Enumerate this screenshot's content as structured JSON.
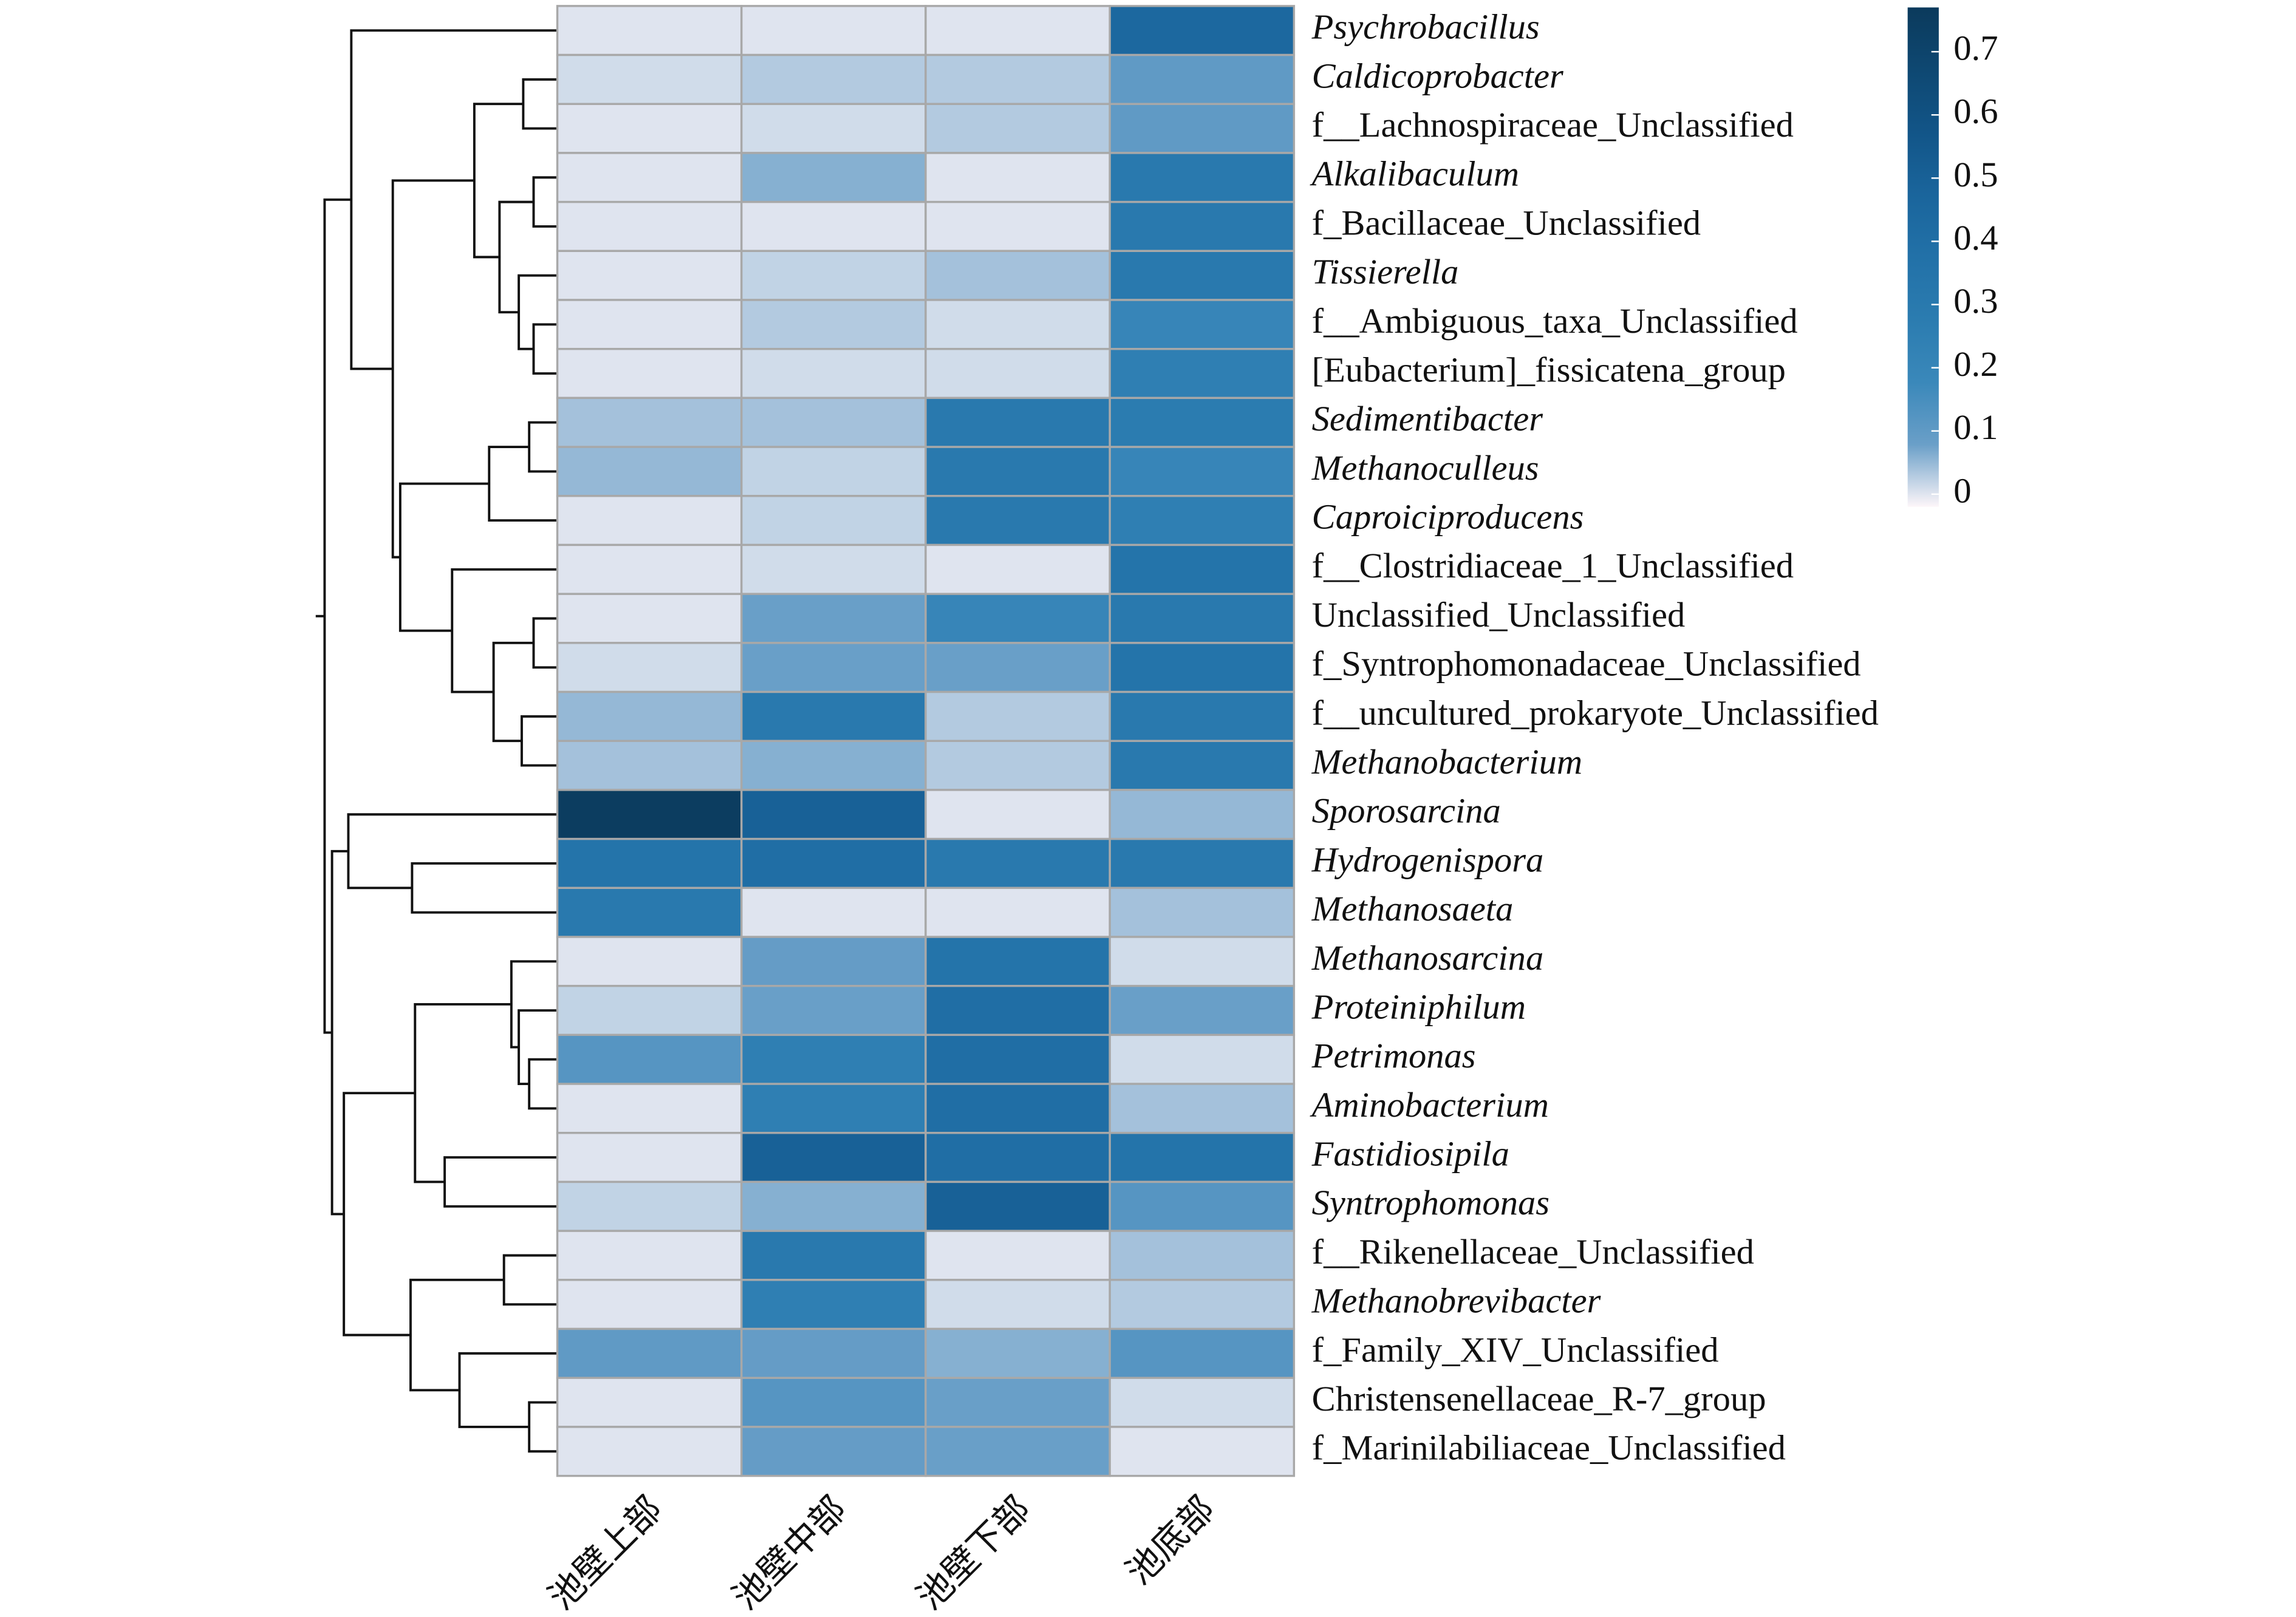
{
  "chart_data": {
    "type": "heatmap",
    "categories": [
      "池壁上部",
      "池壁中部",
      "池壁下部",
      "池底部"
    ],
    "rows": [
      "Psychrobacillus",
      "Caldicoprobacter",
      "f__Lachnospiraceae_Unclassified",
      "Alkalibaculum",
      "f_Bacillaceae_Unclassified",
      "Tissierella",
      "f__Ambiguous_taxa_Unclassified",
      "[Eubacterium]_fissicatena_group",
      "Sedimentibacter",
      "Methanoculleus",
      "Caproiciproducens",
      "f__Clostridiaceae_1_Unclassified",
      "Unclassified_Unclassified",
      "f_Syntrophomonadaceae_Unclassified",
      "f__uncultured_prokaryote_Unclassified",
      "Methanobacterium",
      "Sporosarcina",
      "Hydrogenispora",
      "Methanosaeta",
      "Methanosarcina",
      "Proteiniphilum",
      "Petrimonas",
      "Aminobacterium",
      "Fastidiosipila",
      "Syntrophomonas",
      "f__Rikenellaceae_Unclassified",
      "Methanobrevibacter",
      "f_Family_XIV_Unclassified",
      "Christensenellaceae_R-7_group",
      "f_Marinilabiliaceae_Unclassified"
    ],
    "row_italic": [
      true,
      true,
      false,
      true,
      false,
      true,
      false,
      false,
      true,
      true,
      true,
      false,
      false,
      false,
      false,
      true,
      true,
      true,
      true,
      true,
      true,
      true,
      true,
      true,
      true,
      false,
      true,
      false,
      false,
      false
    ],
    "values": [
      [
        0,
        0,
        0,
        0.45
      ],
      [
        0.01,
        0.03,
        0.03,
        0.1
      ],
      [
        0,
        0.01,
        0.03,
        0.1
      ],
      [
        0,
        0.06,
        0,
        0.3
      ],
      [
        0,
        0,
        0,
        0.3
      ],
      [
        0,
        0.02,
        0.04,
        0.3
      ],
      [
        0,
        0.03,
        0.01,
        0.2
      ],
      [
        0,
        0.01,
        0.01,
        0.25
      ],
      [
        0.04,
        0.04,
        0.3,
        0.28
      ],
      [
        0.05,
        0.02,
        0.3,
        0.2
      ],
      [
        0,
        0.02,
        0.3,
        0.25
      ],
      [
        0,
        0.01,
        0,
        0.35
      ],
      [
        0,
        0.08,
        0.2,
        0.3
      ],
      [
        0.01,
        0.08,
        0.08,
        0.35
      ],
      [
        0.05,
        0.3,
        0.03,
        0.3
      ],
      [
        0.04,
        0.06,
        0.03,
        0.3
      ],
      [
        0.75,
        0.5,
        0,
        0.05
      ],
      [
        0.35,
        0.4,
        0.3,
        0.3
      ],
      [
        0.3,
        0,
        0,
        0.04
      ],
      [
        0,
        0.09,
        0.35,
        0.01
      ],
      [
        0.02,
        0.08,
        0.4,
        0.08
      ],
      [
        0.12,
        0.25,
        0.4,
        0.01
      ],
      [
        0,
        0.25,
        0.4,
        0.04
      ],
      [
        0,
        0.5,
        0.4,
        0.35
      ],
      [
        0.02,
        0.06,
        0.5,
        0.12
      ],
      [
        0,
        0.3,
        0,
        0.04
      ],
      [
        0,
        0.25,
        0.01,
        0.03
      ],
      [
        0.1,
        0.09,
        0.06,
        0.12
      ],
      [
        0,
        0.12,
        0.08,
        0.01
      ],
      [
        0,
        0.09,
        0.08,
        0
      ]
    ],
    "zlim": [
      -0.02,
      0.77
    ],
    "zticks": [
      0,
      0.1,
      0.2,
      0.3,
      0.4,
      0.5,
      0.6,
      0.7
    ],
    "colorscale": [
      "#fdf6f9",
      "#6a9fc8",
      "#3a88ba",
      "#2b7cb0",
      "#2271a8",
      "#1a659c",
      "#125588",
      "#0e4872",
      "#0b3a5c"
    ]
  }
}
